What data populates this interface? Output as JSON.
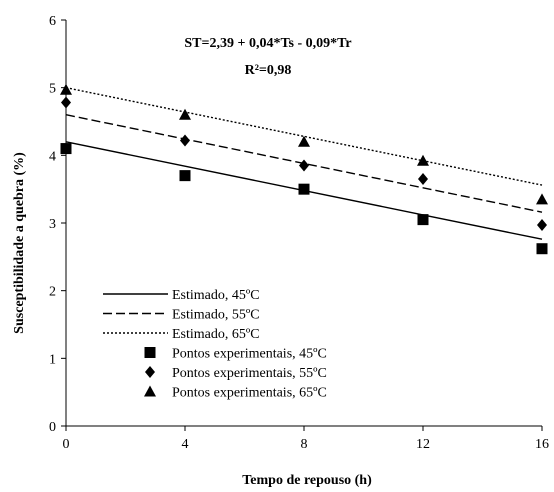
{
  "chart_data": {
    "type": "line",
    "title": "",
    "equation": "ST=2,39 + 0,04*Ts - 0,09*Tr",
    "r_squared": "R²=0,98",
    "xlabel": "Tempo de repouso (h)",
    "ylabel": "Susceptibilidade a quebra (%)",
    "xlim": [
      0,
      16
    ],
    "ylim": [
      0,
      6
    ],
    "x_ticks": [
      "0",
      "4",
      "8",
      "12",
      "16"
    ],
    "y_ticks": [
      "0",
      "1",
      "2",
      "3",
      "4",
      "5",
      "6"
    ],
    "grid": false,
    "legend_position": "bottom-left",
    "x": [
      0,
      4,
      8,
      12,
      16
    ],
    "series": [
      {
        "name": "Estimado, 45ºC",
        "kind": "line",
        "dash": "solid",
        "values": [
          4.2,
          3.84,
          3.48,
          3.12,
          2.76
        ]
      },
      {
        "name": "Estimado, 55ºC",
        "kind": "line",
        "dash": "dashed",
        "values": [
          4.6,
          4.24,
          3.88,
          3.52,
          3.16
        ]
      },
      {
        "name": "Estimado, 65ºC",
        "kind": "line",
        "dash": "dotted",
        "values": [
          5.0,
          4.64,
          4.28,
          3.92,
          3.56
        ]
      },
      {
        "name": "Pontos experimentais, 45ºC",
        "kind": "points",
        "marker": "square",
        "values": [
          4.1,
          3.7,
          3.5,
          3.05,
          2.62
        ]
      },
      {
        "name": "Pontos experimentais, 55ºC",
        "kind": "points",
        "marker": "diamond",
        "values": [
          4.78,
          4.22,
          3.85,
          3.65,
          2.97
        ]
      },
      {
        "name": "Pontos experimentais, 65ºC",
        "kind": "points",
        "marker": "triangle",
        "values": [
          4.97,
          4.6,
          4.2,
          3.92,
          3.35
        ]
      }
    ]
  }
}
